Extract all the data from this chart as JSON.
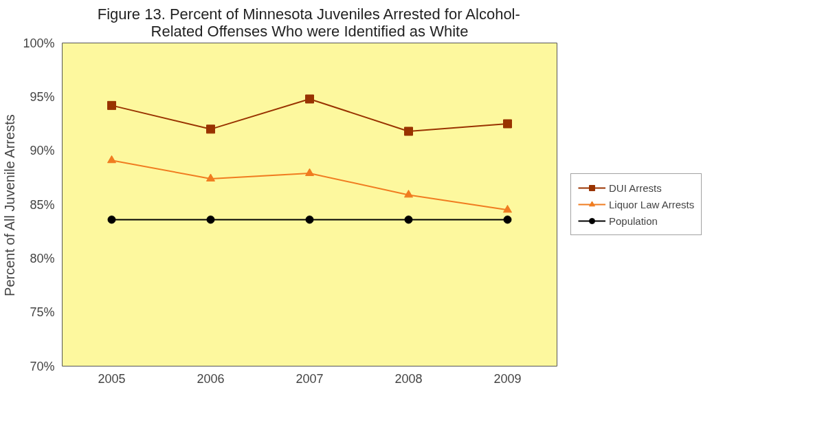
{
  "chart_data": {
    "type": "line",
    "title": "Figure 13. Percent of Minnesota Juveniles Arrested for Alcohol-\nRelated Offenses Who were Identified as White",
    "ylabel": "Percent of All Juvenile Arrests",
    "categories": [
      "2005",
      "2006",
      "2007",
      "2008",
      "2009"
    ],
    "series": [
      {
        "name": "DUI Arrests",
        "color": "#993300",
        "marker": "square",
        "values": [
          94.2,
          92.0,
          94.8,
          91.8,
          92.5
        ]
      },
      {
        "name": "Liquor Law Arrests",
        "color": "#f07c20",
        "marker": "triangle",
        "values": [
          89.1,
          87.4,
          87.9,
          85.9,
          84.5
        ]
      },
      {
        "name": "Population",
        "color": "#000000",
        "marker": "circle",
        "values": [
          83.6,
          83.6,
          83.6,
          83.6,
          83.6
        ]
      }
    ],
    "ylim": [
      70,
      100
    ],
    "yticks": [
      {
        "value": 70,
        "label": "70%"
      },
      {
        "value": 75,
        "label": "75%"
      },
      {
        "value": 80,
        "label": "80%"
      },
      {
        "value": 85,
        "label": "85%"
      },
      {
        "value": 90,
        "label": "90%"
      },
      {
        "value": 95,
        "label": "95%"
      },
      {
        "value": 100,
        "label": "100%"
      }
    ],
    "grid": false,
    "legend": "right",
    "line_style": "solid"
  }
}
